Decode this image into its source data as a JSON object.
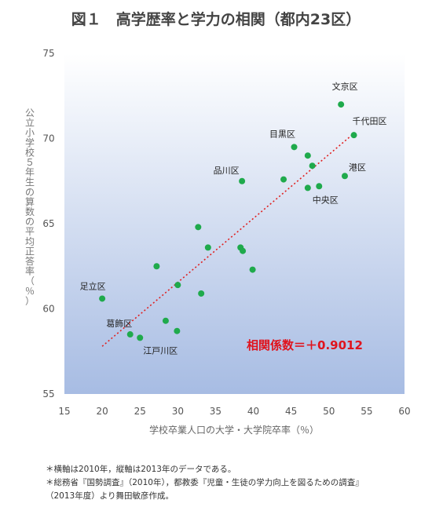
{
  "title": "図１　高学歴率と学力の相関（都内23区）",
  "notes": [
    "＊横軸は2010年，縦軸は2013年のデータである。",
    "＊総務省『国勢調査』（2010年），都教委『児童・生徒の学力向上を図るための調査』",
    "（2013年度）より舞田敏彦作成。"
  ],
  "chart_data": {
    "type": "scatter",
    "xlabel": "学校卒業人口の大学・大学院卒率（％）",
    "ylabel": "公立小学校５年生の算数の平均正答率（％）",
    "xlim": [
      15,
      60
    ],
    "ylim": [
      55,
      75
    ],
    "xticks": [
      "15",
      "20",
      "25",
      "30",
      "35",
      "40",
      "45",
      "50",
      "55",
      "60"
    ],
    "yticks": [
      "55",
      "60",
      "65",
      "70",
      "75"
    ],
    "grid": false,
    "marker_color": "#1faa4c",
    "trendline": {
      "x": [
        20,
        53.3
      ],
      "y": [
        57.8,
        70.3
      ],
      "color": "#e02020",
      "style": "dotted"
    },
    "annotation": {
      "text": "相関係数＝＋0.9012",
      "color": "#e0141e"
    },
    "points": [
      {
        "x": 51.6,
        "y": 72.0,
        "label": "文京区"
      },
      {
        "x": 53.3,
        "y": 70.2,
        "label": "千代田区"
      },
      {
        "x": 45.4,
        "y": 69.5,
        "label": "目黒区"
      },
      {
        "x": 47.2,
        "y": 69.0,
        "label": ""
      },
      {
        "x": 47.8,
        "y": 68.4,
        "label": ""
      },
      {
        "x": 52.1,
        "y": 67.8,
        "label": "港区"
      },
      {
        "x": 44.0,
        "y": 67.6,
        "label": ""
      },
      {
        "x": 38.5,
        "y": 67.5,
        "label": "品川区"
      },
      {
        "x": 47.2,
        "y": 67.1,
        "label": ""
      },
      {
        "x": 48.7,
        "y": 67.2,
        "label": "中央区"
      },
      {
        "x": 32.7,
        "y": 64.8,
        "label": ""
      },
      {
        "x": 34.0,
        "y": 63.6,
        "label": ""
      },
      {
        "x": 38.3,
        "y": 63.6,
        "label": ""
      },
      {
        "x": 38.6,
        "y": 63.4,
        "label": ""
      },
      {
        "x": 27.2,
        "y": 62.5,
        "label": ""
      },
      {
        "x": 39.9,
        "y": 62.3,
        "label": ""
      },
      {
        "x": 30.0,
        "y": 61.4,
        "label": ""
      },
      {
        "x": 33.1,
        "y": 60.9,
        "label": ""
      },
      {
        "x": 20.0,
        "y": 60.6,
        "label": "足立区"
      },
      {
        "x": 28.4,
        "y": 59.3,
        "label": ""
      },
      {
        "x": 29.9,
        "y": 58.7,
        "label": ""
      },
      {
        "x": 23.7,
        "y": 58.5,
        "label": "葛飾区"
      },
      {
        "x": 25.0,
        "y": 58.3,
        "label": "江戸川区"
      }
    ]
  }
}
